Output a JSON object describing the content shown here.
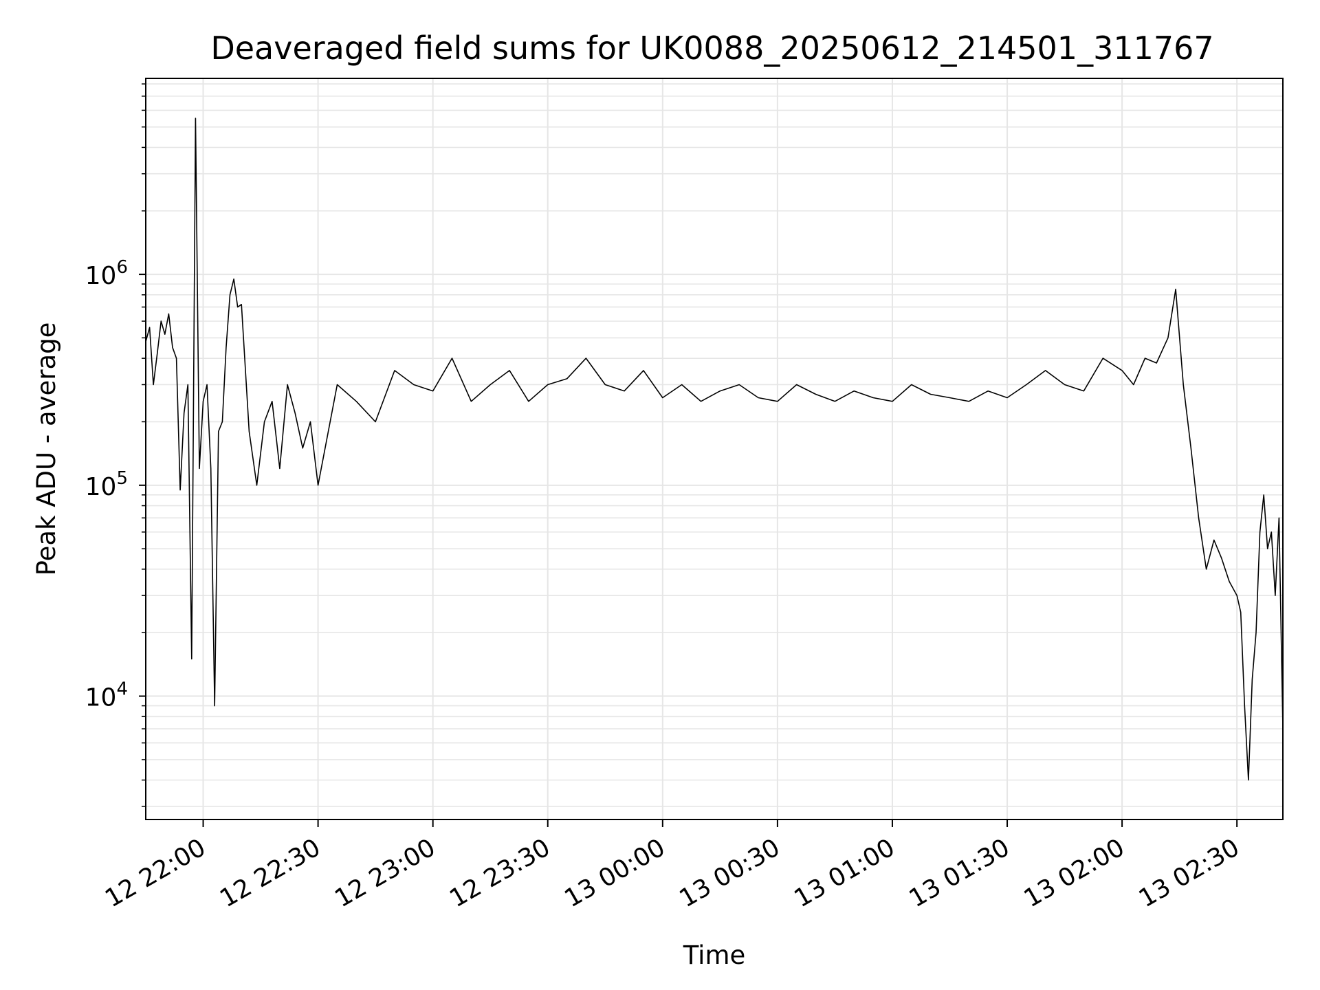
{
  "chart_data": {
    "type": "line",
    "title": "Deaveraged field sums for UK0088_20250612_214501_311767",
    "xlabel": "Time",
    "ylabel": "Peak ADU - average",
    "y_scale": "log",
    "grid": true,
    "line_color": "#000000",
    "grid_color": "#e6e6e6",
    "x_range": [
      "12 21:45",
      "13 02:42"
    ],
    "ylim": [
      2600,
      8500000
    ],
    "x_ticks": [
      {
        "label": "12 22:00",
        "time": "12 22:00"
      },
      {
        "label": "12 22:30",
        "time": "12 22:30"
      },
      {
        "label": "12 23:00",
        "time": "12 23:00"
      },
      {
        "label": "12 23:30",
        "time": "12 23:30"
      },
      {
        "label": "13 00:00",
        "time": "13 00:00"
      },
      {
        "label": "13 00:30",
        "time": "13 00:30"
      },
      {
        "label": "13 01:00",
        "time": "13 01:00"
      },
      {
        "label": "13 01:30",
        "time": "13 01:30"
      },
      {
        "label": "13 02:00",
        "time": "13 02:00"
      },
      {
        "label": "13 02:30",
        "time": "13 02:30"
      }
    ],
    "y_ticks": [
      {
        "value": 10000,
        "base": "10",
        "exp": "4"
      },
      {
        "value": 100000,
        "base": "10",
        "exp": "5"
      },
      {
        "value": 1000000,
        "base": "10",
        "exp": "6"
      }
    ],
    "series": [
      {
        "x": [
          "12 21:45",
          "12 21:46",
          "12 21:47",
          "12 21:48",
          "12 21:49",
          "12 21:50",
          "12 21:51",
          "12 21:52",
          "12 21:53",
          "12 21:54",
          "12 21:55",
          "12 21:56",
          "12 21:57",
          "12 21:58",
          "12 21:59",
          "12 22:00",
          "12 22:01",
          "12 22:02",
          "12 22:03",
          "12 22:04",
          "12 22:05",
          "12 22:06",
          "12 22:07",
          "12 22:08",
          "12 22:09",
          "12 22:10",
          "12 22:12",
          "12 22:14",
          "12 22:16",
          "12 22:18",
          "12 22:20",
          "12 22:22",
          "12 22:24",
          "12 22:26",
          "12 22:28",
          "12 22:30",
          "12 22:35",
          "12 22:40",
          "12 22:45",
          "12 22:50",
          "12 22:55",
          "12 23:00",
          "12 23:05",
          "12 23:10",
          "12 23:15",
          "12 23:20",
          "12 23:25",
          "12 23:30",
          "12 23:35",
          "12 23:40",
          "12 23:45",
          "12 23:50",
          "12 23:55",
          "13 00:00",
          "13 00:05",
          "13 00:10",
          "13 00:15",
          "13 00:20",
          "13 00:25",
          "13 00:30",
          "13 00:35",
          "13 00:40",
          "13 00:45",
          "13 00:50",
          "13 00:55",
          "13 01:00",
          "13 01:05",
          "13 01:10",
          "13 01:15",
          "13 01:20",
          "13 01:25",
          "13 01:30",
          "13 01:35",
          "13 01:40",
          "13 01:45",
          "13 01:50",
          "13 01:55",
          "13 02:00",
          "13 02:03",
          "13 02:06",
          "13 02:09",
          "13 02:12",
          "13 02:14",
          "13 02:16",
          "13 02:18",
          "13 02:20",
          "13 02:22",
          "13 02:24",
          "13 02:26",
          "13 02:28",
          "13 02:30",
          "13 02:31",
          "13 02:32",
          "13 02:33",
          "13 02:34",
          "13 02:35",
          "13 02:36",
          "13 02:37",
          "13 02:38",
          "13 02:39",
          "13 02:40",
          "13 02:41",
          "13 02:42"
        ],
        "y": [
          480000,
          560000,
          300000,
          420000,
          600000,
          520000,
          650000,
          450000,
          400000,
          95000,
          220000,
          300000,
          15000,
          5500000,
          120000,
          250000,
          300000,
          120000,
          9000,
          180000,
          200000,
          450000,
          800000,
          950000,
          700000,
          720000,
          180000,
          100000,
          200000,
          250000,
          120000,
          300000,
          220000,
          150000,
          200000,
          100000,
          300000,
          250000,
          200000,
          350000,
          300000,
          280000,
          400000,
          250000,
          300000,
          350000,
          250000,
          300000,
          320000,
          400000,
          300000,
          280000,
          350000,
          260000,
          300000,
          250000,
          280000,
          300000,
          260000,
          250000,
          300000,
          270000,
          250000,
          280000,
          260000,
          250000,
          300000,
          270000,
          260000,
          250000,
          280000,
          260000,
          300000,
          350000,
          300000,
          280000,
          400000,
          350000,
          300000,
          400000,
          380000,
          500000,
          850000,
          300000,
          150000,
          70000,
          40000,
          55000,
          45000,
          35000,
          30000,
          25000,
          9000,
          4000,
          12000,
          20000,
          60000,
          90000,
          50000,
          60000,
          30000,
          70000,
          7000
        ]
      }
    ]
  }
}
